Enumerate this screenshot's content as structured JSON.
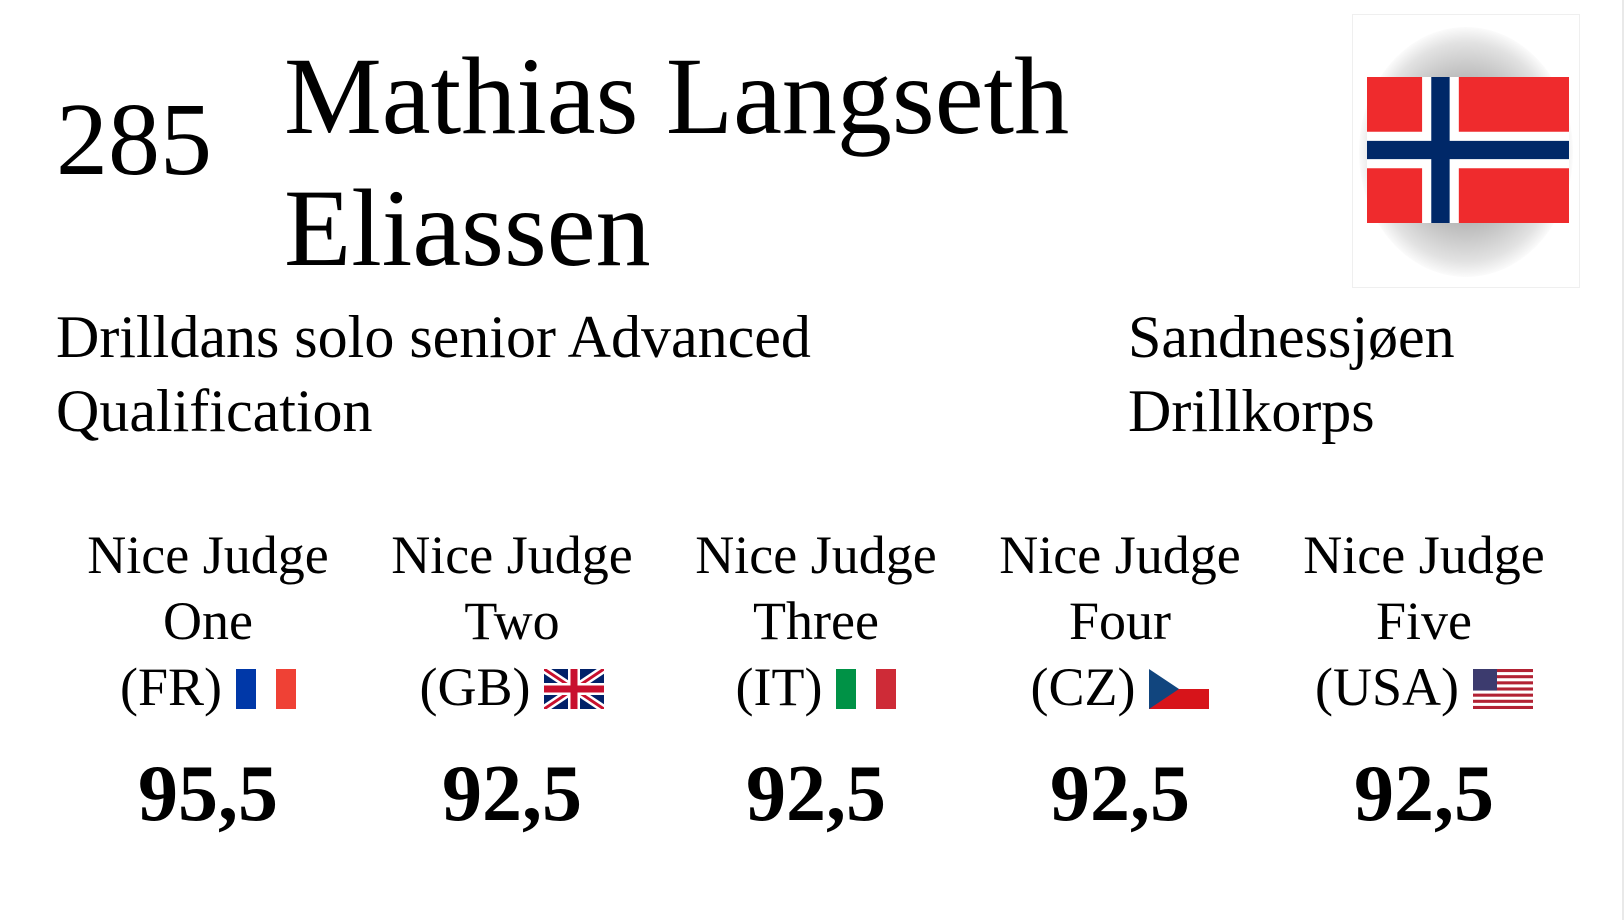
{
  "start_number": "285",
  "athlete": {
    "name_line1": "Mathias Langseth",
    "name_line2": "Eliassen",
    "flag_icon": "norway-flag-icon"
  },
  "category": {
    "line1": "Drilldans solo senior Advanced",
    "line2": "Qualification"
  },
  "club": {
    "line1": "Sandnessjøen",
    "line2": "Drillkorps"
  },
  "colors": {
    "norway_red": "#ef2b2d",
    "norway_blue": "#002868",
    "france_blue": "#0038a8",
    "france_red": "#ef4135",
    "italy_green": "#009246",
    "italy_red": "#ce2b37",
    "czech_blue": "#11457e",
    "czech_red": "#d7141a",
    "uk_blue": "#012169",
    "uk_red": "#c8102e",
    "usa_red": "#b22234",
    "usa_blue": "#3c3b6e"
  },
  "judges": [
    {
      "name_line1": "Nice Judge",
      "name_line2": "One",
      "country": "(FR)",
      "flag_icon": "france-flag-icon",
      "score": "95,5"
    },
    {
      "name_line1": "Nice Judge",
      "name_line2": "Two",
      "country": "(GB)",
      "flag_icon": "uk-flag-icon",
      "score": "92,5"
    },
    {
      "name_line1": "Nice Judge",
      "name_line2": "Three",
      "country": "(IT)",
      "flag_icon": "italy-flag-icon",
      "score": "92,5"
    },
    {
      "name_line1": "Nice Judge",
      "name_line2": "Four",
      "country": "(CZ)",
      "flag_icon": "czech-flag-icon",
      "score": "92,5"
    },
    {
      "name_line1": "Nice Judge",
      "name_line2": "Five",
      "country": "(USA)",
      "flag_icon": "usa-flag-icon",
      "score": "92,5"
    }
  ]
}
